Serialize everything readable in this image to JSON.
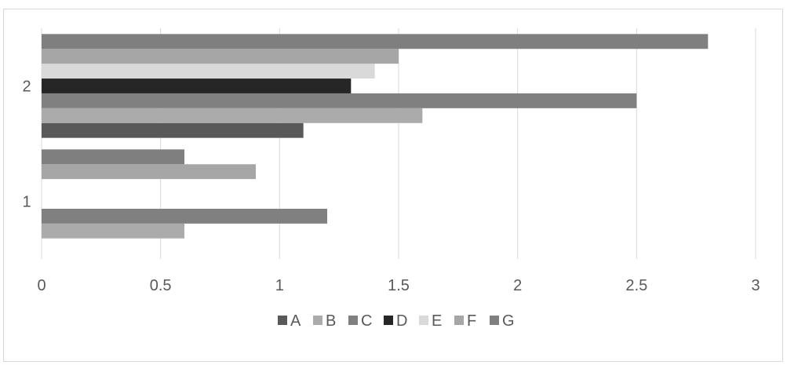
{
  "chart_data": {
    "type": "bar",
    "orientation": "horizontal",
    "categories": [
      "1",
      "2"
    ],
    "series": [
      {
        "name": "A",
        "values": [
          0,
          1.1
        ],
        "color": "#595959"
      },
      {
        "name": "B",
        "values": [
          0.6,
          1.6
        ],
        "color": "#ababab"
      },
      {
        "name": "C",
        "values": [
          1.2,
          2.5
        ],
        "color": "#808080"
      },
      {
        "name": "D",
        "values": [
          0,
          1.3
        ],
        "color": "#262626"
      },
      {
        "name": "E",
        "values": [
          0,
          1.4
        ],
        "color": "#d9d9d9"
      },
      {
        "name": "F",
        "values": [
          0.9,
          1.5
        ],
        "color": "#a6a6a6"
      },
      {
        "name": "G",
        "values": [
          0.6,
          2.8
        ],
        "color": "#7f7f7f"
      }
    ],
    "xlim": [
      0,
      3
    ],
    "x_ticks": [
      "0",
      "0.5",
      "1",
      "1.5",
      "2",
      "2.5",
      "3"
    ],
    "gridlines": "vertical",
    "legend_position": "bottom",
    "title": "",
    "xlabel": "",
    "ylabel": ""
  }
}
